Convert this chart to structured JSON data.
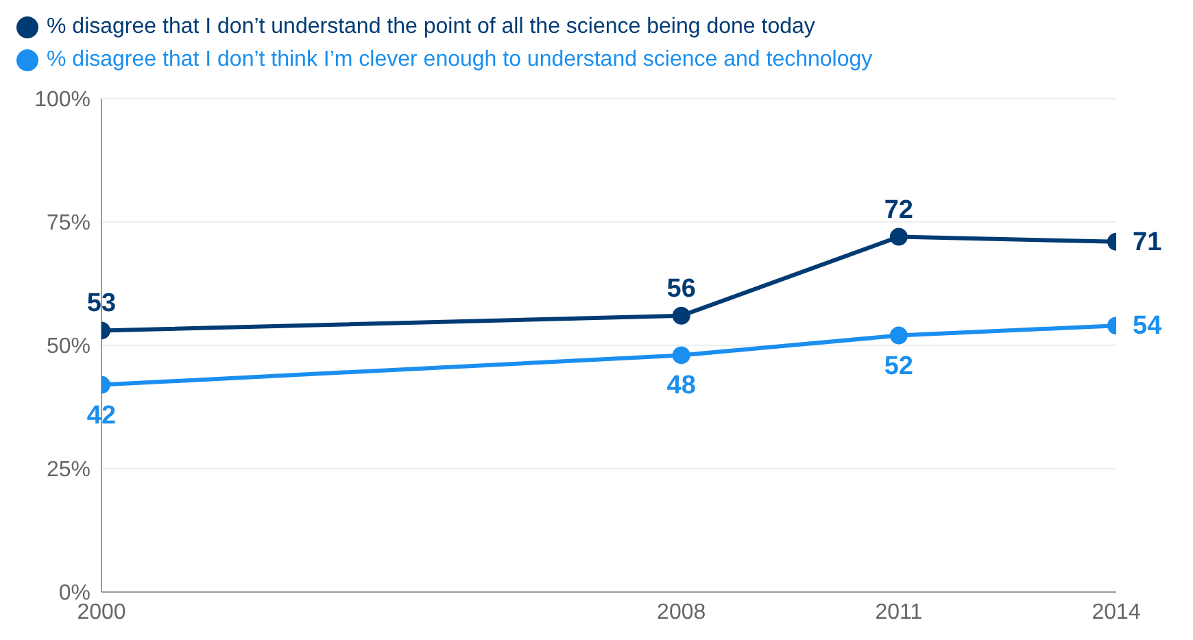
{
  "chart_data": {
    "type": "line",
    "x": [
      2000,
      2008,
      2011,
      2014
    ],
    "series": [
      {
        "name": "% disagree that I don’t understand the point of all the science being done today",
        "color": "#003b73",
        "values": [
          53,
          56,
          72,
          71
        ]
      },
      {
        "name": "% disagree that I don’t think I’m clever enough to understand science and technology",
        "color": "#1a8fef",
        "values": [
          42,
          48,
          52,
          54
        ]
      }
    ],
    "xlim": [
      2000,
      2014
    ],
    "xticks": [
      2000,
      2008,
      2011,
      2014
    ],
    "ylim": [
      0,
      100
    ],
    "yticks": [
      {
        "value": 0,
        "label": "0%"
      },
      {
        "value": 25,
        "label": "25%"
      },
      {
        "value": 50,
        "label": "50%"
      },
      {
        "value": 75,
        "label": "75%"
      },
      {
        "value": 100,
        "label": "100%"
      }
    ],
    "grid": "y",
    "legend": "top left",
    "marker": "circle",
    "line_style": "solid",
    "data_labels": true
  }
}
